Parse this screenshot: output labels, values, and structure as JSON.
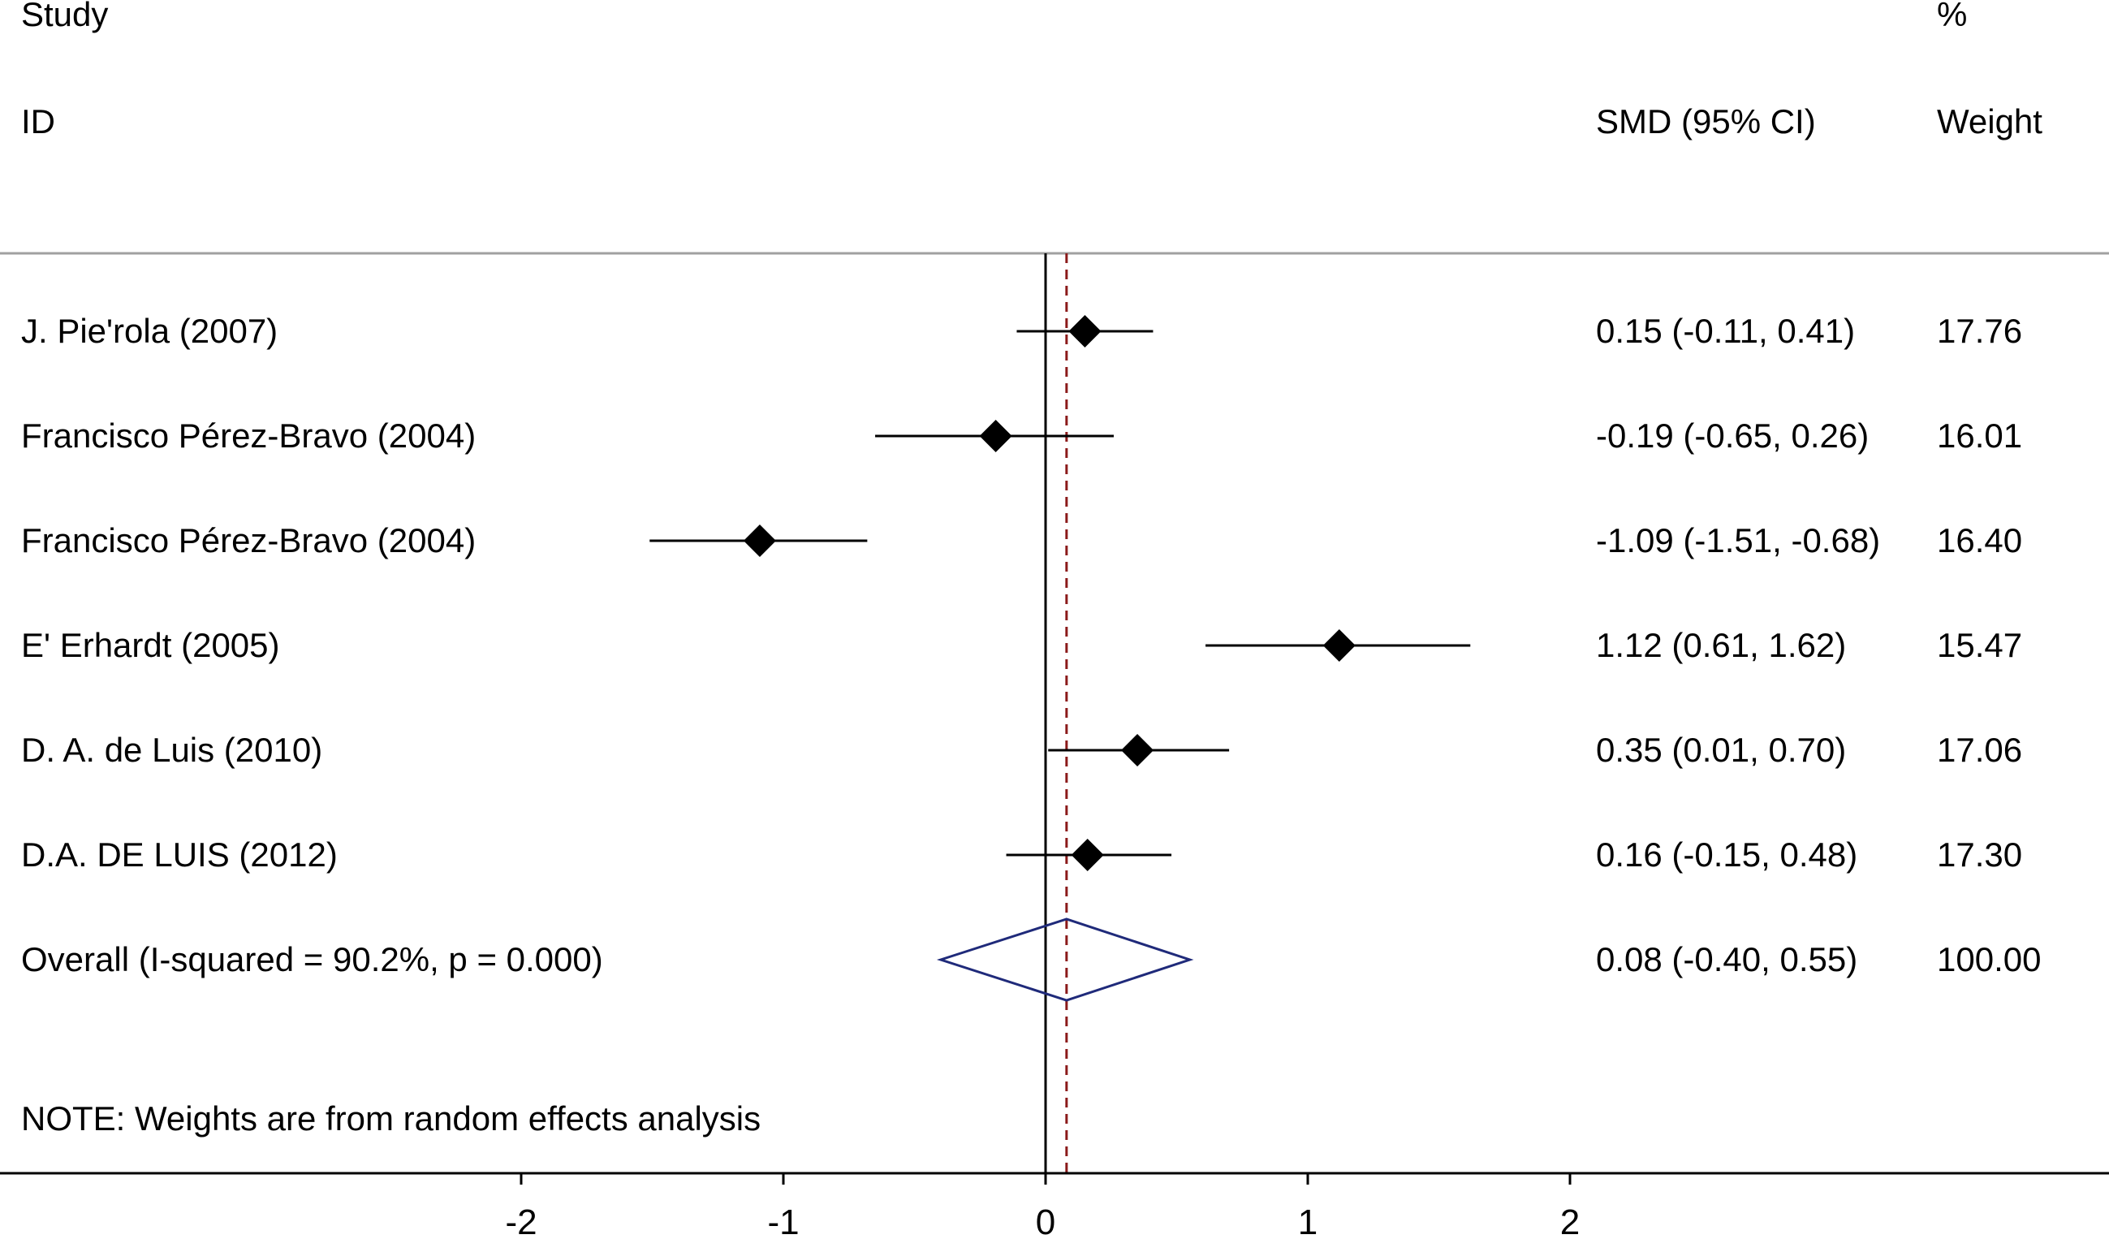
{
  "headers": {
    "study_label": "Study",
    "id_label": "ID",
    "effect_label": "SMD (95% CI)",
    "percent_label": "%",
    "weight_label": "Weight"
  },
  "note": "NOTE: Weights are from random effects analysis",
  "colors": {
    "text": "#000000",
    "marker": "#000000",
    "overall_diamond": "#1f2a7a",
    "overall_line": "#8b1a1a",
    "separator": "#a0a0a0"
  },
  "chart_data": {
    "type": "forest",
    "effect_measure": "SMD",
    "null_value": 0,
    "xlim": [
      -2,
      2
    ],
    "xticks": [
      -2,
      -1,
      0,
      1,
      2
    ],
    "xtick_labels": [
      "-2",
      "-1",
      "0",
      "1",
      "2"
    ],
    "studies": [
      {
        "label": "J. Pie'rola (2007)",
        "estimate": 0.15,
        "ci_low": -0.11,
        "ci_high": 0.41,
        "ci_text": "0.15 (-0.11, 0.41)",
        "weight": "17.76"
      },
      {
        "label": "Francisco Pérez-Bravo (2004)",
        "estimate": -0.19,
        "ci_low": -0.65,
        "ci_high": 0.26,
        "ci_text": "-0.19 (-0.65, 0.26)",
        "weight": "16.01"
      },
      {
        "label": "Francisco Pérez-Bravo (2004)",
        "estimate": -1.09,
        "ci_low": -1.51,
        "ci_high": -0.68,
        "ci_text": "-1.09 (-1.51, -0.68)",
        "weight": "16.40"
      },
      {
        "label": "E' Erhardt (2005)",
        "estimate": 1.12,
        "ci_low": 0.61,
        "ci_high": 1.62,
        "ci_text": "1.12 (0.61, 1.62)",
        "weight": "15.47"
      },
      {
        "label": "D. A. de Luis (2010)",
        "estimate": 0.35,
        "ci_low": 0.01,
        "ci_high": 0.7,
        "ci_text": "0.35 (0.01, 0.70)",
        "weight": "17.06"
      },
      {
        "label": "D.A. DE LUIS (2012)",
        "estimate": 0.16,
        "ci_low": -0.15,
        "ci_high": 0.48,
        "ci_text": "0.16 (-0.15, 0.48)",
        "weight": "17.30"
      }
    ],
    "overall": {
      "label": "Overall  (I-squared = 90.2%, p = 0.000)",
      "estimate": 0.08,
      "ci_low": -0.4,
      "ci_high": 0.55,
      "ci_text": "0.08 (-0.40, 0.55)",
      "weight": "100.00"
    }
  }
}
